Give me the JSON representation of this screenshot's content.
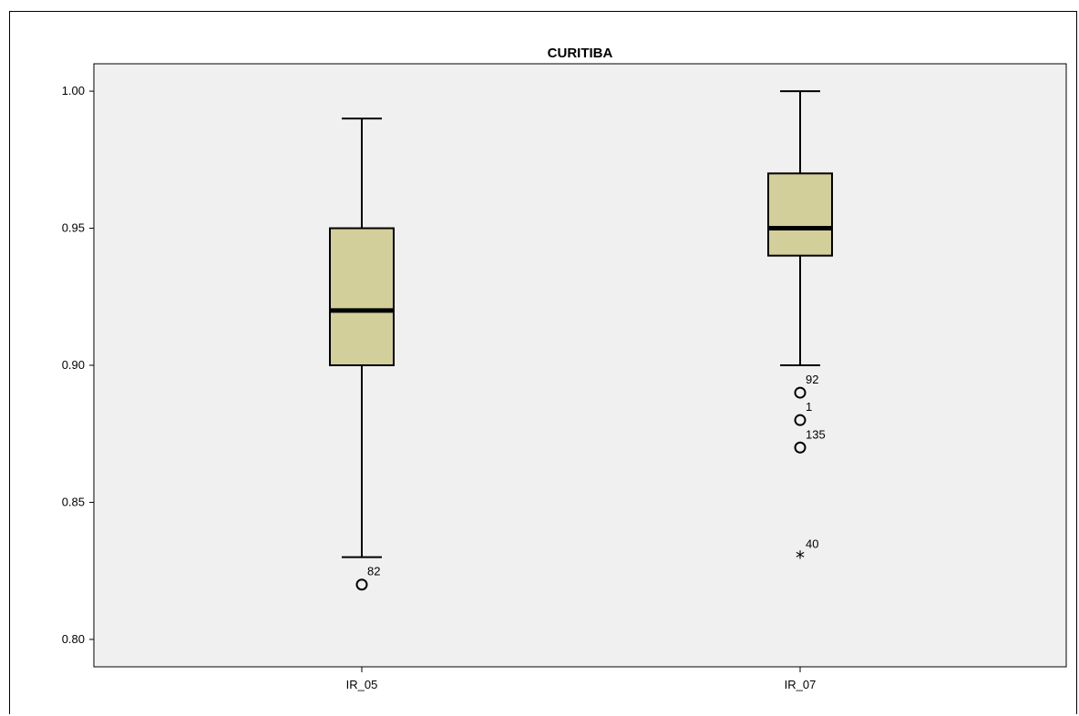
{
  "chart_data": {
    "type": "boxplot",
    "title": "CURITIBA",
    "xlabel": "",
    "ylabel": "",
    "ylim": [
      0.79,
      1.01
    ],
    "yticks": [
      "0.80",
      "0.85",
      "0.90",
      "0.95",
      "1.00"
    ],
    "ytick_values": [
      0.8,
      0.85,
      0.9,
      0.95,
      1.0
    ],
    "grid": false,
    "colors": {
      "plot_background": "#f0f0f0",
      "box_fill": "#d3cf9a",
      "stroke": "#000000"
    },
    "categories": [
      "IR_05",
      "IR_07"
    ],
    "boxes": [
      {
        "category": "IR_05",
        "whisker_low": 0.83,
        "q1": 0.9,
        "median": 0.92,
        "q3": 0.95,
        "whisker_high": 0.99,
        "outliers": [
          {
            "value": 0.82,
            "label": "82",
            "marker": "circle"
          }
        ]
      },
      {
        "category": "IR_07",
        "whisker_low": 0.9,
        "q1": 0.94,
        "median": 0.95,
        "q3": 0.97,
        "whisker_high": 1.0,
        "outliers": [
          {
            "value": 0.89,
            "label": "92",
            "marker": "circle"
          },
          {
            "value": 0.88,
            "label": "1",
            "marker": "circle"
          },
          {
            "value": 0.87,
            "label": "135",
            "marker": "circle"
          },
          {
            "value": 0.83,
            "label": "40",
            "marker": "star"
          }
        ]
      }
    ]
  }
}
